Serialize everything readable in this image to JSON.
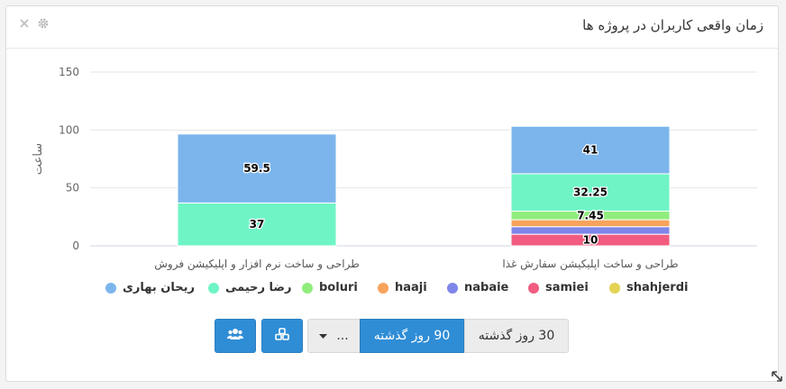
{
  "panel": {
    "title": "زمان واقعی کاربران در پروژه ها",
    "close_icon": "close-icon",
    "settings_icon": "gear-icon"
  },
  "chart_data": {
    "type": "bar",
    "stacked": true,
    "categories": [
      "طراحی و ساخت نرم افزار و اپلیکیشن فروش",
      "طراحی و ساخت اپلیکیشن سفارش غذا"
    ],
    "ylabel": "ساعت",
    "xlabel": "",
    "ylim": [
      0,
      150
    ],
    "yticks": [
      0,
      50,
      100,
      150
    ],
    "legend_position": "bottom",
    "grid": true,
    "series": [
      {
        "name": "ریحان بهاری",
        "color": "#7cb5ec",
        "values": [
          59.5,
          41
        ]
      },
      {
        "name": "رضا رحیمی",
        "color": "#6ff5c5",
        "values": [
          37,
          32.25
        ]
      },
      {
        "name": "boluri",
        "color": "#90ed7d",
        "values": [
          0,
          7.45
        ]
      },
      {
        "name": "haaji",
        "color": "#f7a35c",
        "values": [
          0,
          6
        ]
      },
      {
        "name": "nabaie",
        "color": "#8085e9",
        "values": [
          0,
          6.5
        ]
      },
      {
        "name": "samiei",
        "color": "#f15c80",
        "values": [
          0,
          10
        ]
      },
      {
        "name": "shahjerdi",
        "color": "#e4d354",
        "values": [
          0,
          0
        ]
      }
    ],
    "data_labels": [
      {
        "series": 0,
        "index": 0,
        "text": "59.5"
      },
      {
        "series": 1,
        "index": 0,
        "text": "37"
      },
      {
        "series": 0,
        "index": 1,
        "text": "41"
      },
      {
        "series": 1,
        "index": 1,
        "text": "32.25"
      },
      {
        "series": 2,
        "index": 1,
        "text": "7.45"
      },
      {
        "series": 5,
        "index": 1,
        "text": "10"
      }
    ]
  },
  "buttons": {
    "users_icon": "users-icon",
    "projects_icon": "cubes-icon",
    "dropdown_label": "...",
    "range_90_label": "90 روز گذشته",
    "range_30_label": "30 روز گذشته",
    "resize_icon": "resize-icon"
  },
  "colors": {
    "accent": "#2f8dd6"
  }
}
